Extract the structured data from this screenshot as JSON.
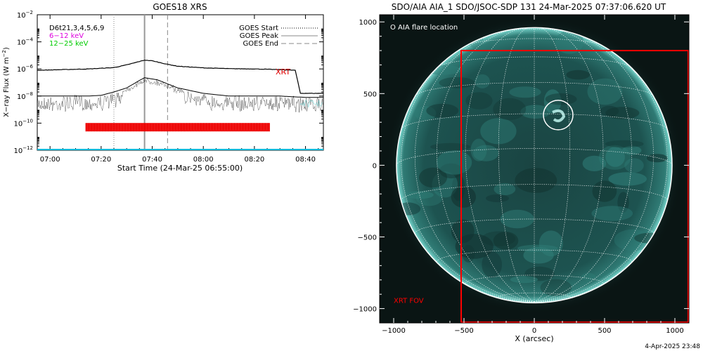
{
  "chart_data": [
    {
      "type": "line",
      "title": "GOES18 XRS",
      "xlabel": "Start Time (24-Mar-25 06:55:00)",
      "ylabel": "X-ray Flux (W m⁻²)",
      "ylabel_base": "X−ray Flux (W m",
      "ylabel_sup": "−2",
      "ylabel_close": ")",
      "yscale": "log",
      "xlim": [
        "06:55",
        "08:47"
      ],
      "ylim": [
        1e-12,
        0.01
      ],
      "xticks": [
        "07:00",
        "07:20",
        "07:40",
        "08:00",
        "08:20",
        "08:40"
      ],
      "yticks_base": "10",
      "yticks_exp": [
        "−12",
        "−10",
        "−8",
        "−6",
        "−4",
        "−2"
      ],
      "yticks_values": [
        -12,
        -10,
        -8,
        -6,
        -4,
        -2
      ],
      "legend_left": [
        {
          "text": "D6t21,3,4,5,6,9",
          "color": "#000000"
        },
        {
          "text": "6−12 keV",
          "color": "#dd00dd"
        },
        {
          "text": "12−25 keV",
          "color": "#00cc00"
        }
      ],
      "legend_right": [
        {
          "text": "GOES Start",
          "style": "dotted"
        },
        {
          "text": "GOES Peak",
          "style": "solid"
        },
        {
          "text": "GOES End",
          "style": "dashed"
        }
      ],
      "markers": {
        "start": "07:25",
        "peak": "07:37",
        "end": "07:46"
      },
      "series": [
        {
          "name": "XRT",
          "color": "#000000",
          "x": [
            "06:55",
            "07:05",
            "07:15",
            "07:25",
            "07:30",
            "07:35",
            "07:37",
            "07:40",
            "07:45",
            "07:50",
            "08:00",
            "08:10",
            "08:20",
            "08:30",
            "08:36",
            "08:38",
            "08:47"
          ],
          "y_log": [
            -6.1,
            -6.05,
            -6.0,
            -5.9,
            -5.7,
            -5.45,
            -5.35,
            -5.4,
            -5.62,
            -5.8,
            -5.92,
            -5.98,
            -6.0,
            -6.05,
            -6.1,
            -7.8,
            -7.8
          ]
        },
        {
          "x": [
            "06:55",
            "07:05",
            "07:15",
            "07:20",
            "07:25",
            "07:30",
            "07:35",
            "07:37",
            "07:42",
            "07:50",
            "08:00",
            "08:10",
            "08:20",
            "08:30",
            "08:40",
            "08:47"
          ],
          "y_log": [
            -8.0,
            -8.0,
            -8.0,
            -7.95,
            -7.7,
            -7.4,
            -6.85,
            -6.65,
            -6.8,
            -7.4,
            -7.8,
            -8.0,
            -8.0,
            -8.0,
            -8.1,
            -8.1
          ],
          "color": "#000000",
          "style": "noisy"
        }
      ],
      "xrt_label": "XRT",
      "xrt_label_color": "#dd0000",
      "xrt_bar": {
        "start": "07:14",
        "end": "08:26",
        "y_log": -10.3,
        "color": "#ee0000"
      },
      "baseline": {
        "y_log": -12,
        "color": "#00bbdd"
      }
    },
    {
      "type": "image",
      "title": "SDO/AIA AIA_1 SDO/JSOC-SDP 131 24-Mar-2025 07:37:06.620 UT",
      "xlabel": "X (arcsec)",
      "xlim": [
        -1100,
        1100
      ],
      "ylim": [
        -1100,
        1050
      ],
      "xticks": [
        "−1000",
        "−500",
        "0",
        "500",
        "1000"
      ],
      "xticks_values": [
        -1000,
        -500,
        0,
        500,
        1000
      ],
      "yticks": [
        "1000",
        "500",
        "0",
        "−500",
        "−1000"
      ],
      "yticks_values": [
        1000,
        500,
        0,
        -500,
        -1000
      ],
      "sun_radius_arcsec": 980,
      "legend": "O AIA flare location",
      "flare_location": {
        "x": 170,
        "y": 350,
        "radius": 105
      },
      "xrt_fov": {
        "label": "XRT FOV",
        "x0": -520,
        "x1": 1100,
        "y0": -1100,
        "y1": 800,
        "color": "#ff0000"
      },
      "background_color": "#0a1514",
      "disk_color": "#1c4e4a"
    }
  ],
  "footer_timestamp": "4-Apr-2025 23:48"
}
